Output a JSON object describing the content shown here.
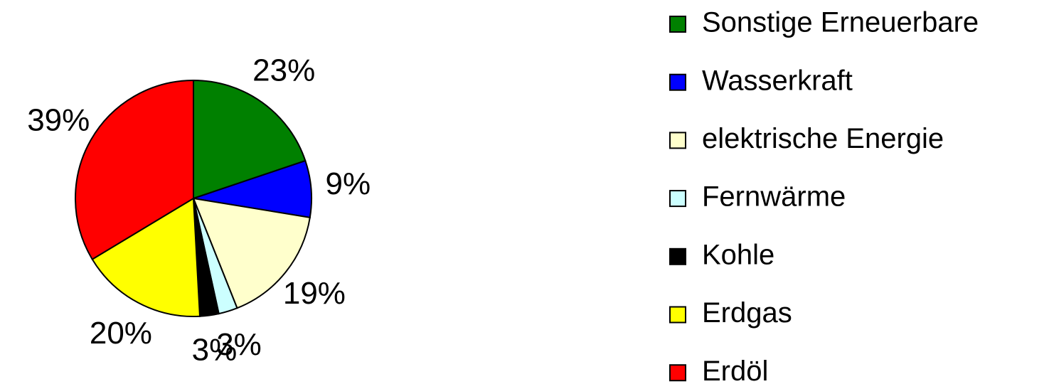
{
  "chart_data": {
    "type": "pie",
    "categories": [
      "Sonstige Erneuerbare",
      "Wasserkraft",
      "elektrische Energie",
      "Fernwärme",
      "Kohle",
      "Erdgas",
      "Erdöl"
    ],
    "values": [
      23,
      9,
      19,
      3,
      3,
      20,
      39
    ],
    "value_labels": [
      "23%",
      "9%",
      "19%",
      "3%",
      "3%",
      "20%",
      "39%"
    ],
    "colors": [
      "#008000",
      "#0000ff",
      "#ffffcc",
      "#ccffff",
      "#000000",
      "#ffff00",
      "#ff0000"
    ],
    "legend": "right"
  }
}
